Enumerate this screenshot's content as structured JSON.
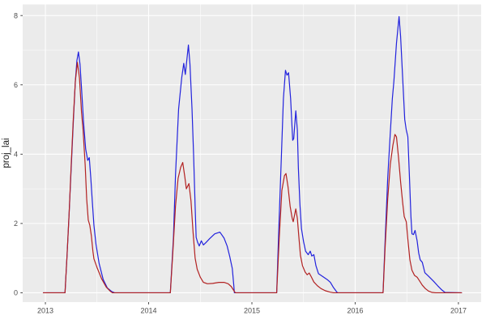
{
  "chart_data": {
    "type": "line",
    "title": "",
    "xlabel": "",
    "ylabel": "proj_lai",
    "theme": "ggplot-gray",
    "legend": "none",
    "xlim": [
      2012.78,
      2017.22
    ],
    "ylim": [
      -0.27,
      8.32
    ],
    "x_ticks": [
      2013,
      2014,
      2015,
      2016,
      2017
    ],
    "x_tick_labels": [
      "2013",
      "2014",
      "2015",
      "2016",
      "2017"
    ],
    "x_minor_ticks": [
      2013.5,
      2014.5,
      2015.5,
      2016.5
    ],
    "y_ticks": [
      0,
      2,
      4,
      6,
      8
    ],
    "y_tick_labels": [
      "0",
      "2",
      "4",
      "6",
      "8"
    ],
    "y_minor_ticks": [
      1,
      3,
      5,
      7
    ],
    "colors": {
      "panel_background": "#EBEBEB",
      "grid": "#FFFFFF",
      "outer_background": "#FFFFFF",
      "tick_text": "#4D4D4D",
      "axis_title": "#1A1A1A",
      "tick_mark": "#333333"
    },
    "series": [
      {
        "name": "blue-projection",
        "color": "#2222DD",
        "points": [
          [
            2012.98,
            0
          ],
          [
            2013.19,
            0
          ],
          [
            2013.21,
            1.1
          ],
          [
            2013.23,
            2.3
          ],
          [
            2013.25,
            3.6
          ],
          [
            2013.27,
            4.9
          ],
          [
            2013.29,
            6.1
          ],
          [
            2013.305,
            6.7
          ],
          [
            2013.32,
            6.95
          ],
          [
            2013.335,
            6.6
          ],
          [
            2013.35,
            5.9
          ],
          [
            2013.37,
            4.9
          ],
          [
            2013.39,
            4.15
          ],
          [
            2013.41,
            3.82
          ],
          [
            2013.425,
            3.9
          ],
          [
            2013.44,
            3.3
          ],
          [
            2013.455,
            2.6
          ],
          [
            2013.47,
            1.95
          ],
          [
            2013.49,
            1.4
          ],
          [
            2013.52,
            0.85
          ],
          [
            2013.56,
            0.38
          ],
          [
            2013.6,
            0.14
          ],
          [
            2013.64,
            0.04
          ],
          [
            2013.67,
            0
          ],
          [
            2014.21,
            0
          ],
          [
            2014.24,
            1.6
          ],
          [
            2014.26,
            3.4
          ],
          [
            2014.29,
            5.3
          ],
          [
            2014.32,
            6.2
          ],
          [
            2014.34,
            6.62
          ],
          [
            2014.355,
            6.3
          ],
          [
            2014.385,
            7.15
          ],
          [
            2014.4,
            6.6
          ],
          [
            2014.42,
            5.3
          ],
          [
            2014.435,
            4.0
          ],
          [
            2014.45,
            2.5
          ],
          [
            2014.46,
            1.6
          ],
          [
            2014.475,
            1.45
          ],
          [
            2014.49,
            1.35
          ],
          [
            2014.51,
            1.5
          ],
          [
            2014.53,
            1.38
          ],
          [
            2014.555,
            1.45
          ],
          [
            2014.59,
            1.56
          ],
          [
            2014.64,
            1.7
          ],
          [
            2014.69,
            1.75
          ],
          [
            2014.73,
            1.58
          ],
          [
            2014.76,
            1.35
          ],
          [
            2014.785,
            1.05
          ],
          [
            2014.81,
            0.7
          ],
          [
            2014.825,
            0.2
          ],
          [
            2014.83,
            0
          ],
          [
            2015.24,
            0
          ],
          [
            2015.26,
            1.8
          ],
          [
            2015.285,
            3.9
          ],
          [
            2015.305,
            5.6
          ],
          [
            2015.325,
            6.42
          ],
          [
            2015.34,
            6.28
          ],
          [
            2015.355,
            6.35
          ],
          [
            2015.375,
            5.6
          ],
          [
            2015.395,
            4.4
          ],
          [
            2015.405,
            4.45
          ],
          [
            2015.425,
            5.25
          ],
          [
            2015.44,
            4.7
          ],
          [
            2015.45,
            3.6
          ],
          [
            2015.465,
            2.55
          ],
          [
            2015.48,
            1.85
          ],
          [
            2015.5,
            1.48
          ],
          [
            2015.52,
            1.2
          ],
          [
            2015.545,
            1.1
          ],
          [
            2015.565,
            1.2
          ],
          [
            2015.58,
            1.06
          ],
          [
            2015.6,
            1.1
          ],
          [
            2015.62,
            0.78
          ],
          [
            2015.645,
            0.55
          ],
          [
            2015.69,
            0.46
          ],
          [
            2015.73,
            0.38
          ],
          [
            2015.76,
            0.3
          ],
          [
            2015.79,
            0.15
          ],
          [
            2015.82,
            0.03
          ],
          [
            2015.83,
            0
          ],
          [
            2016.27,
            0
          ],
          [
            2016.29,
            1.5
          ],
          [
            2016.315,
            3.3
          ],
          [
            2016.34,
            4.6
          ],
          [
            2016.36,
            5.6
          ],
          [
            2016.375,
            6.1
          ],
          [
            2016.4,
            7.2
          ],
          [
            2016.425,
            7.97
          ],
          [
            2016.44,
            7.4
          ],
          [
            2016.46,
            6.2
          ],
          [
            2016.48,
            5.0
          ],
          [
            2016.495,
            4.7
          ],
          [
            2016.51,
            4.5
          ],
          [
            2016.525,
            3.4
          ],
          [
            2016.54,
            2.2
          ],
          [
            2016.55,
            1.7
          ],
          [
            2016.565,
            1.68
          ],
          [
            2016.58,
            1.8
          ],
          [
            2016.6,
            1.5
          ],
          [
            2016.615,
            1.15
          ],
          [
            2016.63,
            0.95
          ],
          [
            2016.65,
            0.88
          ],
          [
            2016.675,
            0.58
          ],
          [
            2016.71,
            0.48
          ],
          [
            2016.76,
            0.33
          ],
          [
            2016.8,
            0.2
          ],
          [
            2016.84,
            0.08
          ],
          [
            2016.87,
            0.01
          ],
          [
            2017.03,
            0
          ]
        ]
      },
      {
        "name": "red-projection",
        "color": "#B22222",
        "points": [
          [
            2012.98,
            0
          ],
          [
            2013.19,
            0
          ],
          [
            2013.21,
            1.1
          ],
          [
            2013.23,
            2.3
          ],
          [
            2013.25,
            3.7
          ],
          [
            2013.27,
            5.0
          ],
          [
            2013.29,
            6.1
          ],
          [
            2013.31,
            6.65
          ],
          [
            2013.33,
            6.2
          ],
          [
            2013.35,
            5.2
          ],
          [
            2013.365,
            4.7
          ],
          [
            2013.385,
            3.7
          ],
          [
            2013.4,
            2.7
          ],
          [
            2013.415,
            2.1
          ],
          [
            2013.43,
            1.95
          ],
          [
            2013.445,
            1.65
          ],
          [
            2013.46,
            1.2
          ],
          [
            2013.47,
            0.98
          ],
          [
            2013.5,
            0.73
          ],
          [
            2013.545,
            0.4
          ],
          [
            2013.59,
            0.16
          ],
          [
            2013.63,
            0.04
          ],
          [
            2013.65,
            0
          ],
          [
            2014.21,
            0
          ],
          [
            2014.235,
            1.2
          ],
          [
            2014.26,
            2.5
          ],
          [
            2014.285,
            3.3
          ],
          [
            2014.31,
            3.62
          ],
          [
            2014.33,
            3.76
          ],
          [
            2014.35,
            3.35
          ],
          [
            2014.365,
            3.0
          ],
          [
            2014.39,
            3.15
          ],
          [
            2014.41,
            2.65
          ],
          [
            2014.43,
            1.75
          ],
          [
            2014.45,
            1.0
          ],
          [
            2014.47,
            0.68
          ],
          [
            2014.5,
            0.45
          ],
          [
            2014.53,
            0.3
          ],
          [
            2014.57,
            0.26
          ],
          [
            2014.62,
            0.27
          ],
          [
            2014.68,
            0.3
          ],
          [
            2014.73,
            0.3
          ],
          [
            2014.77,
            0.26
          ],
          [
            2014.8,
            0.18
          ],
          [
            2014.83,
            0.04
          ],
          [
            2014.84,
            0
          ],
          [
            2015.24,
            0
          ],
          [
            2015.265,
            1.6
          ],
          [
            2015.29,
            2.95
          ],
          [
            2015.315,
            3.38
          ],
          [
            2015.33,
            3.44
          ],
          [
            2015.35,
            3.05
          ],
          [
            2015.37,
            2.5
          ],
          [
            2015.39,
            2.15
          ],
          [
            2015.4,
            2.05
          ],
          [
            2015.425,
            2.42
          ],
          [
            2015.44,
            2.15
          ],
          [
            2015.455,
            1.6
          ],
          [
            2015.47,
            1.08
          ],
          [
            2015.49,
            0.78
          ],
          [
            2015.515,
            0.6
          ],
          [
            2015.535,
            0.52
          ],
          [
            2015.555,
            0.57
          ],
          [
            2015.575,
            0.46
          ],
          [
            2015.6,
            0.31
          ],
          [
            2015.635,
            0.2
          ],
          [
            2015.67,
            0.12
          ],
          [
            2015.71,
            0.06
          ],
          [
            2015.755,
            0.02
          ],
          [
            2015.79,
            0
          ],
          [
            2016.27,
            0
          ],
          [
            2016.29,
            1.3
          ],
          [
            2016.315,
            2.7
          ],
          [
            2016.34,
            3.7
          ],
          [
            2016.365,
            4.25
          ],
          [
            2016.385,
            4.57
          ],
          [
            2016.4,
            4.5
          ],
          [
            2016.42,
            3.9
          ],
          [
            2016.44,
            3.2
          ],
          [
            2016.46,
            2.6
          ],
          [
            2016.475,
            2.2
          ],
          [
            2016.495,
            2.05
          ],
          [
            2016.51,
            1.55
          ],
          [
            2016.53,
            0.95
          ],
          [
            2016.55,
            0.65
          ],
          [
            2016.575,
            0.5
          ],
          [
            2016.6,
            0.45
          ],
          [
            2016.62,
            0.36
          ],
          [
            2016.65,
            0.22
          ],
          [
            2016.68,
            0.12
          ],
          [
            2016.71,
            0.05
          ],
          [
            2016.745,
            0.01
          ],
          [
            2016.78,
            0
          ],
          [
            2017.03,
            0
          ]
        ]
      }
    ]
  }
}
